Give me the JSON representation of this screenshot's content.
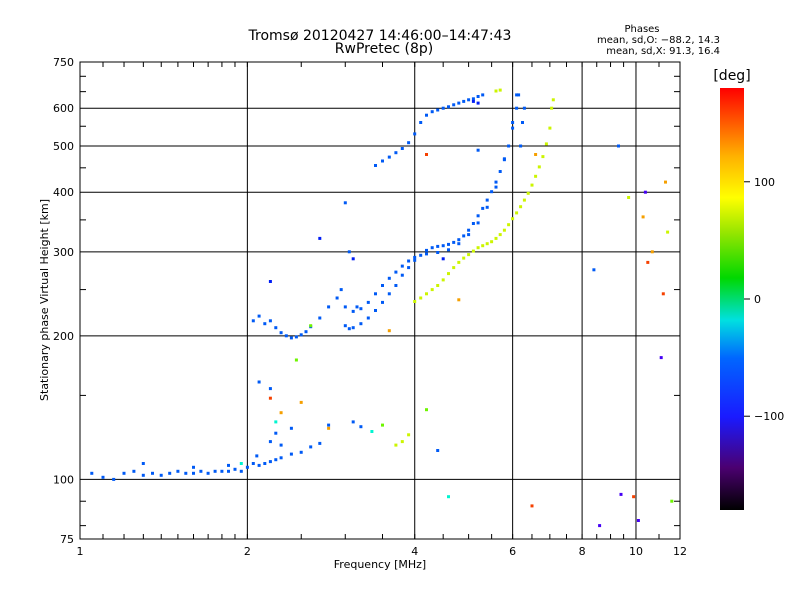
{
  "chart_data": {
    "type": "scatter",
    "title": "Tromsø 20120427 14:46:00–14:47:43",
    "subtitle": "RwPretec (8p)",
    "xlabel": "Frequency [MHz]",
    "ylabel": "Stationary phase Virtual Height [km]",
    "xscale": "log",
    "yscale": "log",
    "xlim": [
      1,
      12
    ],
    "ylim": [
      75,
      750
    ],
    "xticks": [
      1,
      2,
      4,
      6,
      8,
      10,
      12
    ],
    "yticks": [
      75,
      100,
      200,
      300,
      400,
      500,
      600,
      750
    ],
    "grid": true,
    "phases_title": "Phases",
    "phases_lines": [
      "mean, sd,O: −88.2, 14.3",
      "mean, sd,X: 91.3, 16.4"
    ],
    "colorbar": {
      "label": "[deg]",
      "range": [
        -180,
        180
      ],
      "ticks": [
        {
          "value": 100,
          "label": "100"
        },
        {
          "value": 0,
          "label": "0"
        },
        {
          "value": -100,
          "label": "−100"
        }
      ]
    },
    "series": [
      {
        "phase_deg": -100,
        "points": [
          [
            1.05,
            103
          ],
          [
            1.1,
            101
          ],
          [
            1.15,
            100
          ],
          [
            1.2,
            103
          ],
          [
            1.25,
            104
          ],
          [
            1.3,
            102
          ],
          [
            1.35,
            103
          ],
          [
            1.4,
            102
          ],
          [
            1.45,
            103
          ],
          [
            1.5,
            104
          ],
          [
            1.55,
            103
          ],
          [
            1.6,
            103
          ],
          [
            1.65,
            104
          ],
          [
            1.7,
            103
          ],
          [
            1.75,
            104
          ],
          [
            1.8,
            104
          ],
          [
            1.85,
            104
          ],
          [
            1.9,
            105
          ],
          [
            1.95,
            104
          ],
          [
            2.0,
            106
          ],
          [
            2.05,
            108
          ],
          [
            2.1,
            107
          ],
          [
            2.15,
            108
          ],
          [
            2.2,
            109
          ],
          [
            2.25,
            110
          ],
          [
            2.3,
            111
          ],
          [
            2.4,
            113
          ],
          [
            2.5,
            114
          ],
          [
            2.6,
            117
          ],
          [
            2.7,
            119
          ],
          [
            1.3,
            108
          ],
          [
            1.6,
            106
          ],
          [
            1.85,
            107
          ],
          [
            2.08,
            112
          ],
          [
            2.05,
            215
          ],
          [
            2.1,
            220
          ],
          [
            2.15,
            212
          ],
          [
            2.2,
            215
          ],
          [
            2.25,
            208
          ],
          [
            2.3,
            203
          ],
          [
            2.35,
            200
          ],
          [
            2.4,
            198
          ],
          [
            2.45,
            199
          ],
          [
            2.5,
            201
          ],
          [
            2.55,
            204
          ],
          [
            2.6,
            209
          ],
          [
            2.7,
            218
          ],
          [
            2.8,
            230
          ],
          [
            2.9,
            240
          ],
          [
            2.95,
            250
          ],
          [
            3.0,
            210
          ],
          [
            3.05,
            207
          ],
          [
            3.1,
            208
          ],
          [
            3.2,
            212
          ],
          [
            3.3,
            218
          ],
          [
            3.4,
            226
          ],
          [
            3.5,
            235
          ],
          [
            3.6,
            245
          ],
          [
            3.7,
            255
          ],
          [
            3.8,
            268
          ],
          [
            3.9,
            278
          ],
          [
            4.0,
            288
          ],
          [
            4.1,
            295
          ],
          [
            4.2,
            302
          ],
          [
            4.3,
            306
          ],
          [
            4.4,
            308
          ],
          [
            4.5,
            309
          ],
          [
            4.6,
            311
          ],
          [
            4.7,
            314
          ],
          [
            4.8,
            318
          ],
          [
            4.9,
            324
          ],
          [
            5.0,
            333
          ],
          [
            5.1,
            344
          ],
          [
            5.2,
            357
          ],
          [
            5.3,
            370
          ],
          [
            5.4,
            385
          ],
          [
            5.5,
            401
          ],
          [
            5.6,
            420
          ],
          [
            5.7,
            442
          ],
          [
            5.8,
            468
          ],
          [
            5.9,
            500
          ],
          [
            6.0,
            545
          ],
          [
            6.1,
            600
          ],
          [
            6.15,
            640
          ],
          [
            3.0,
            230
          ],
          [
            3.1,
            225
          ],
          [
            3.2,
            228
          ],
          [
            3.3,
            235
          ],
          [
            3.4,
            245
          ],
          [
            3.5,
            255
          ],
          [
            3.6,
            264
          ],
          [
            3.7,
            272
          ],
          [
            3.8,
            280
          ],
          [
            3.9,
            287
          ],
          [
            4.0,
            292
          ],
          [
            4.2,
            297
          ],
          [
            4.4,
            299
          ],
          [
            4.6,
            303
          ],
          [
            4.8,
            312
          ],
          [
            5.0,
            326
          ],
          [
            5.2,
            345
          ],
          [
            5.4,
            372
          ],
          [
            5.6,
            410
          ],
          [
            5.8,
            470
          ],
          [
            6.0,
            560
          ],
          [
            6.1,
            640
          ],
          [
            3.4,
            455
          ],
          [
            3.5,
            465
          ],
          [
            3.6,
            474
          ],
          [
            3.7,
            484
          ],
          [
            3.8,
            494
          ],
          [
            3.9,
            508
          ],
          [
            4.0,
            530
          ],
          [
            4.1,
            560
          ],
          [
            4.2,
            580
          ],
          [
            4.3,
            590
          ],
          [
            4.4,
            595
          ],
          [
            4.5,
            600
          ],
          [
            4.6,
            604
          ],
          [
            4.7,
            610
          ],
          [
            4.8,
            615
          ],
          [
            4.9,
            620
          ],
          [
            5.0,
            625
          ],
          [
            5.1,
            628
          ],
          [
            5.2,
            635
          ],
          [
            5.3,
            640
          ],
          [
            2.8,
            130
          ],
          [
            3.1,
            132
          ],
          [
            3.2,
            129
          ],
          [
            2.2,
            120
          ],
          [
            2.25,
            125
          ],
          [
            2.3,
            118
          ],
          [
            2.4,
            128
          ],
          [
            4.4,
            115
          ],
          [
            2.1,
            160
          ],
          [
            2.2,
            155
          ],
          [
            3.0,
            380
          ],
          [
            3.05,
            300
          ],
          [
            3.15,
            230
          ],
          [
            6.2,
            500
          ],
          [
            6.25,
            560
          ],
          [
            6.3,
            600
          ],
          [
            5.2,
            490
          ],
          [
            8.4,
            275
          ],
          [
            9.3,
            500
          ]
        ]
      },
      {
        "phase_deg": 90,
        "points": [
          [
            4.0,
            236
          ],
          [
            4.1,
            240
          ],
          [
            4.2,
            245
          ],
          [
            4.3,
            250
          ],
          [
            4.4,
            255
          ],
          [
            4.5,
            262
          ],
          [
            4.6,
            270
          ],
          [
            4.7,
            278
          ],
          [
            4.8,
            285
          ],
          [
            4.9,
            291
          ],
          [
            5.0,
            296
          ],
          [
            5.1,
            301
          ],
          [
            5.2,
            306
          ],
          [
            5.3,
            309
          ],
          [
            5.4,
            312
          ],
          [
            5.5,
            315
          ],
          [
            5.6,
            320
          ],
          [
            5.7,
            326
          ],
          [
            5.8,
            333
          ],
          [
            5.9,
            342
          ],
          [
            6.0,
            352
          ],
          [
            6.1,
            362
          ],
          [
            6.2,
            373
          ],
          [
            6.3,
            385
          ],
          [
            6.4,
            398
          ],
          [
            6.5,
            414
          ],
          [
            6.6,
            432
          ],
          [
            6.7,
            452
          ],
          [
            6.8,
            475
          ],
          [
            6.9,
            505
          ],
          [
            7.0,
            545
          ],
          [
            7.05,
            600
          ],
          [
            7.1,
            625
          ],
          [
            3.7,
            118
          ],
          [
            3.8,
            120
          ],
          [
            3.9,
            124
          ],
          [
            5.6,
            652
          ],
          [
            5.7,
            655
          ],
          [
            9.7,
            390
          ],
          [
            11.4,
            330
          ]
        ]
      },
      {
        "phase_deg": 130,
        "points": [
          [
            2.3,
            138
          ],
          [
            2.5,
            145
          ],
          [
            2.8,
            128
          ],
          [
            3.6,
            205
          ],
          [
            4.8,
            238
          ],
          [
            6.6,
            480
          ],
          [
            10.3,
            355
          ],
          [
            10.7,
            300
          ],
          [
            11.3,
            420
          ]
        ]
      },
      {
        "phase_deg": 160,
        "points": [
          [
            2.2,
            148
          ],
          [
            4.2,
            480
          ],
          [
            6.5,
            88
          ],
          [
            10.5,
            285
          ],
          [
            11.2,
            245
          ],
          [
            9.9,
            92
          ]
        ]
      },
      {
        "phase_deg": 60,
        "points": [
          [
            2.45,
            178
          ],
          [
            2.6,
            210
          ],
          [
            4.2,
            140
          ],
          [
            3.5,
            130
          ],
          [
            11.6,
            90
          ]
        ]
      },
      {
        "phase_deg": -40,
        "points": [
          [
            2.25,
            132
          ],
          [
            3.35,
            126
          ],
          [
            4.6,
            92
          ],
          [
            1.95,
            108
          ]
        ]
      },
      {
        "phase_deg": -150,
        "points": [
          [
            9.4,
            93
          ],
          [
            10.4,
            400
          ],
          [
            8.6,
            80
          ],
          [
            10.1,
            82
          ],
          [
            11.1,
            180
          ]
        ]
      },
      {
        "phase_deg": -120,
        "points": [
          [
            2.2,
            260
          ],
          [
            2.7,
            320
          ],
          [
            3.1,
            290
          ],
          [
            4.5,
            290
          ],
          [
            5.1,
            620
          ],
          [
            5.2,
            615
          ]
        ]
      }
    ]
  }
}
